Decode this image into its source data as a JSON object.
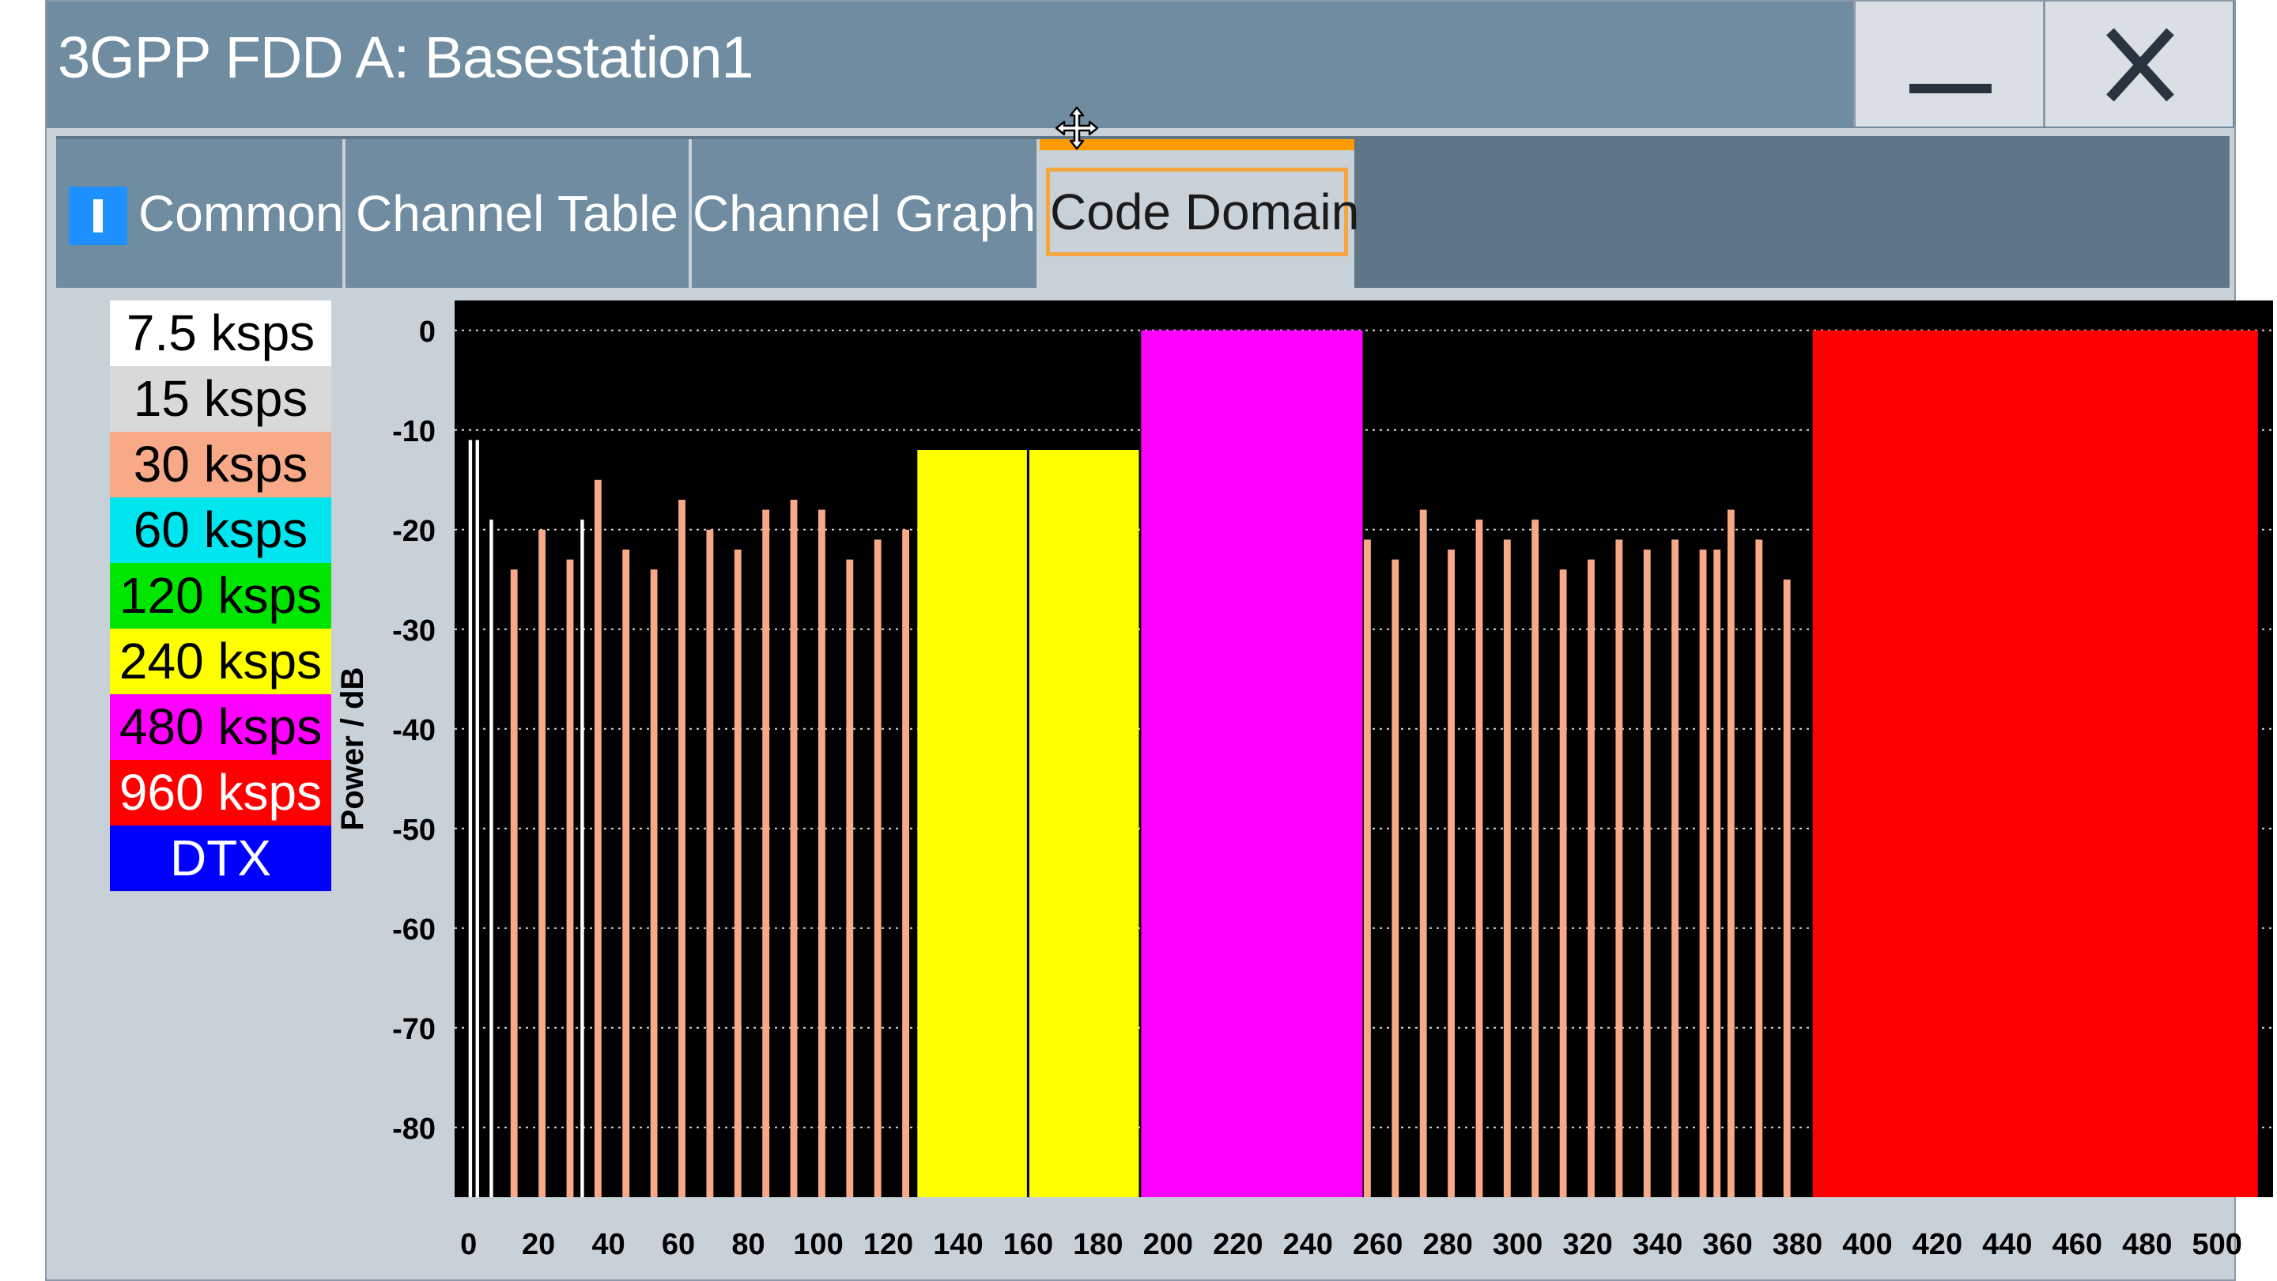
{
  "window": {
    "title": "3GPP FDD A: Basestation1",
    "minimize_icon": "minimize-icon",
    "close_icon": "close-icon",
    "move_icon": "move-icon"
  },
  "tabs": [
    {
      "label": "Common"
    },
    {
      "label": "Channel Table"
    },
    {
      "label": "Channel Graph"
    },
    {
      "label": "Code Domain"
    }
  ],
  "legend": [
    {
      "label": "7.5 ksps",
      "bg": "#ffffff",
      "fg": "#000000"
    },
    {
      "label": "15 ksps",
      "bg": "#d9d9d9",
      "fg": "#000000"
    },
    {
      "label": "30 ksps",
      "bg": "#f8a987",
      "fg": "#000000"
    },
    {
      "label": "60 ksps",
      "bg": "#00e5ee",
      "fg": "#000000"
    },
    {
      "label": "120 ksps",
      "bg": "#00e600",
      "fg": "#000000"
    },
    {
      "label": "240 ksps",
      "bg": "#ffff00",
      "fg": "#000000"
    },
    {
      "label": "480 ksps",
      "bg": "#ff00ff",
      "fg": "#000000"
    },
    {
      "label": "960 ksps",
      "bg": "#ff0000",
      "fg": "#ffffff"
    },
    {
      "label": "DTX",
      "bg": "#0000ff",
      "fg": "#ffffff"
    }
  ],
  "chart_data": {
    "type": "bar",
    "ylabel": "Power / dB",
    "xlabel": "",
    "ylim": [
      -87,
      3
    ],
    "yticks": [
      0,
      -10,
      -20,
      -30,
      -40,
      -50,
      -60,
      -70,
      -80
    ],
    "xlim": [
      -4,
      516
    ],
    "xticks": [
      0,
      20,
      40,
      60,
      80,
      100,
      120,
      140,
      160,
      180,
      200,
      220,
      240,
      260,
      280,
      300,
      320,
      340,
      360,
      380,
      400,
      420,
      440,
      460,
      480,
      500
    ],
    "grid": true,
    "colors": {
      "7.5 ksps": "#ffffff",
      "30 ksps": "#f8a987",
      "240 ksps": "#ffff00",
      "480 ksps": "#ff00ff",
      "960 ksps": "#ff0000"
    },
    "bars": [
      {
        "start": 0,
        "width": 1,
        "value": -11,
        "rate": "7.5 ksps"
      },
      {
        "start": 2,
        "width": 1,
        "value": -11,
        "rate": "7.5 ksps"
      },
      {
        "start": 6,
        "width": 1,
        "value": -19,
        "rate": "7.5 ksps"
      },
      {
        "start": 12,
        "width": 2,
        "value": -24,
        "rate": "30 ksps"
      },
      {
        "start": 20,
        "width": 2,
        "value": -20,
        "rate": "30 ksps"
      },
      {
        "start": 28,
        "width": 2,
        "value": -23,
        "rate": "30 ksps"
      },
      {
        "start": 32,
        "width": 1,
        "value": -19,
        "rate": "7.5 ksps"
      },
      {
        "start": 36,
        "width": 2,
        "value": -15,
        "rate": "30 ksps"
      },
      {
        "start": 44,
        "width": 2,
        "value": -22,
        "rate": "30 ksps"
      },
      {
        "start": 52,
        "width": 2,
        "value": -24,
        "rate": "30 ksps"
      },
      {
        "start": 60,
        "width": 2,
        "value": -17,
        "rate": "30 ksps"
      },
      {
        "start": 68,
        "width": 2,
        "value": -20,
        "rate": "30 ksps"
      },
      {
        "start": 76,
        "width": 2,
        "value": -22,
        "rate": "30 ksps"
      },
      {
        "start": 84,
        "width": 2,
        "value": -18,
        "rate": "30 ksps"
      },
      {
        "start": 92,
        "width": 2,
        "value": -17,
        "rate": "30 ksps"
      },
      {
        "start": 100,
        "width": 2,
        "value": -18,
        "rate": "30 ksps"
      },
      {
        "start": 108,
        "width": 2,
        "value": -23,
        "rate": "30 ksps"
      },
      {
        "start": 116,
        "width": 2,
        "value": -21,
        "rate": "30 ksps"
      },
      {
        "start": 124,
        "width": 2,
        "value": -20,
        "rate": "30 ksps"
      },
      {
        "start": 128,
        "width": 32,
        "value": -12,
        "rate": "240 ksps"
      },
      {
        "start": 160,
        "width": 32,
        "value": -12,
        "rate": "240 ksps"
      },
      {
        "start": 192,
        "width": 64,
        "value": 0,
        "rate": "480 ksps"
      },
      {
        "start": 256,
        "width": 2,
        "value": -21,
        "rate": "30 ksps"
      },
      {
        "start": 264,
        "width": 2,
        "value": -23,
        "rate": "30 ksps"
      },
      {
        "start": 272,
        "width": 2,
        "value": -18,
        "rate": "30 ksps"
      },
      {
        "start": 280,
        "width": 2,
        "value": -22,
        "rate": "30 ksps"
      },
      {
        "start": 288,
        "width": 2,
        "value": -19,
        "rate": "30 ksps"
      },
      {
        "start": 296,
        "width": 2,
        "value": -21,
        "rate": "30 ksps"
      },
      {
        "start": 304,
        "width": 2,
        "value": -19,
        "rate": "30 ksps"
      },
      {
        "start": 312,
        "width": 2,
        "value": -24,
        "rate": "30 ksps"
      },
      {
        "start": 320,
        "width": 2,
        "value": -23,
        "rate": "30 ksps"
      },
      {
        "start": 328,
        "width": 2,
        "value": -21,
        "rate": "30 ksps"
      },
      {
        "start": 336,
        "width": 2,
        "value": -22,
        "rate": "30 ksps"
      },
      {
        "start": 344,
        "width": 2,
        "value": -21,
        "rate": "30 ksps"
      },
      {
        "start": 352,
        "width": 2,
        "value": -22,
        "rate": "30 ksps"
      },
      {
        "start": 356,
        "width": 2,
        "value": -22,
        "rate": "30 ksps"
      },
      {
        "start": 360,
        "width": 2,
        "value": -18,
        "rate": "30 ksps"
      },
      {
        "start": 368,
        "width": 2,
        "value": -21,
        "rate": "30 ksps"
      },
      {
        "start": 376,
        "width": 2,
        "value": -25,
        "rate": "30 ksps"
      },
      {
        "start": 384,
        "width": 128,
        "value": 0,
        "rate": "960 ksps"
      }
    ]
  }
}
